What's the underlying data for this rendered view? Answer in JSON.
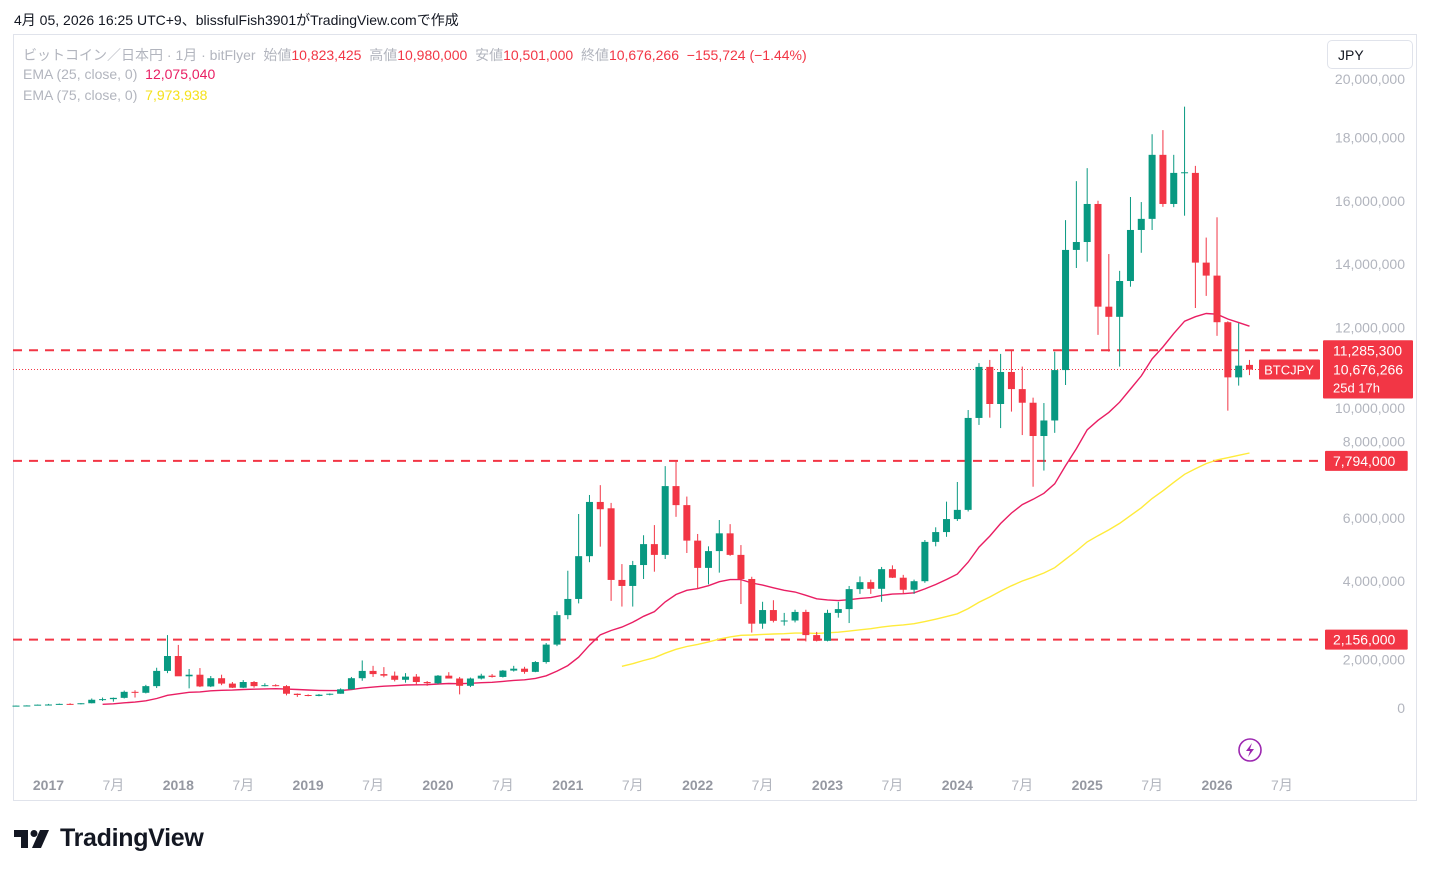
{
  "caption": "4月 05, 2026 16:25 UTC+9、blissfulFish3901がTradingView.comで作成",
  "legend": {
    "symbol": "ビットコイン／日本円 · 1月 · bitFlyer",
    "open_label": "始値",
    "open": "10,823,425",
    "high_label": "高値",
    "high": "10,980,000",
    "low_label": "安値",
    "low": "10,501,000",
    "close_label": "終値",
    "close": "10,676,266",
    "change": "−155,724 (−1.44%)",
    "ema25_label": "EMA (25, close, 0)",
    "ema25_value": "12,075,040",
    "ema75_label": "EMA (75, close, 0)",
    "ema75_value": "7,973,938"
  },
  "currency_button": "JPY",
  "price_labels": {
    "symbol_tag": "BTCJPY",
    "last_price": "10,676,266",
    "countdown": "25d 17h",
    "levels": [
      {
        "value": 11285300,
        "label": "11,285,300"
      },
      {
        "value": 7794000,
        "label": "7,794,000"
      },
      {
        "value": 2156000,
        "label": "2,156,000"
      }
    ]
  },
  "logo_text": "TradingView",
  "colors": {
    "up": "#089981",
    "down": "#f23645",
    "ema25": "#e91e63",
    "ema75": "#ffeb3b",
    "level": "#f23645",
    "alert": "#9c27b0"
  },
  "chart_data": {
    "type": "candlestick",
    "title": "ビットコイン／日本円 · 1月 · bitFlyer",
    "interval": "1M",
    "start": "2016-10",
    "unit": "million JPY",
    "fields": [
      "open",
      "high",
      "low",
      "close"
    ],
    "ohlc": [
      [
        0.065,
        0.08,
        0.06,
        0.075
      ],
      [
        0.075,
        0.085,
        0.07,
        0.08
      ],
      [
        0.08,
        0.11,
        0.078,
        0.105
      ],
      [
        0.105,
        0.13,
        0.09,
        0.11
      ],
      [
        0.11,
        0.14,
        0.105,
        0.13
      ],
      [
        0.13,
        0.15,
        0.1,
        0.12
      ],
      [
        0.12,
        0.155,
        0.115,
        0.15
      ],
      [
        0.15,
        0.3,
        0.145,
        0.26
      ],
      [
        0.26,
        0.33,
        0.22,
        0.28
      ],
      [
        0.28,
        0.33,
        0.2,
        0.32
      ],
      [
        0.32,
        0.55,
        0.3,
        0.51
      ],
      [
        0.51,
        0.56,
        0.33,
        0.48
      ],
      [
        0.48,
        0.73,
        0.46,
        0.69
      ],
      [
        0.69,
        1.27,
        0.63,
        1.17
      ],
      [
        1.17,
        2.3,
        1.1,
        1.64
      ],
      [
        1.64,
        1.99,
        1.05,
        1.0
      ],
      [
        1.0,
        1.23,
        0.62,
        1.05
      ],
      [
        1.05,
        1.26,
        0.66,
        0.68
      ],
      [
        0.68,
        1.01,
        0.66,
        0.94
      ],
      [
        0.94,
        1.05,
        0.72,
        0.77
      ],
      [
        0.77,
        0.82,
        0.63,
        0.64
      ],
      [
        0.64,
        0.88,
        0.63,
        0.82
      ],
      [
        0.82,
        0.85,
        0.64,
        0.69
      ],
      [
        0.69,
        0.78,
        0.68,
        0.72
      ],
      [
        0.72,
        0.75,
        0.68,
        0.69
      ],
      [
        0.69,
        0.72,
        0.4,
        0.45
      ],
      [
        0.45,
        0.46,
        0.35,
        0.41
      ],
      [
        0.41,
        0.43,
        0.37,
        0.38
      ],
      [
        0.38,
        0.44,
        0.37,
        0.42
      ],
      [
        0.42,
        0.46,
        0.4,
        0.45
      ],
      [
        0.45,
        0.62,
        0.45,
        0.59
      ],
      [
        0.59,
        0.98,
        0.58,
        0.94
      ],
      [
        0.94,
        1.5,
        0.86,
        1.17
      ],
      [
        1.17,
        1.33,
        0.98,
        1.07
      ],
      [
        1.07,
        1.29,
        0.97,
        1.02
      ],
      [
        1.02,
        1.15,
        0.84,
        0.89
      ],
      [
        0.89,
        1.1,
        0.8,
        0.99
      ],
      [
        0.99,
        1.07,
        0.73,
        0.82
      ],
      [
        0.82,
        0.85,
        0.7,
        0.78
      ],
      [
        0.78,
        1.04,
        0.75,
        1.02
      ],
      [
        1.02,
        1.13,
        0.93,
        0.93
      ],
      [
        0.93,
        0.98,
        0.43,
        0.7
      ],
      [
        0.7,
        0.96,
        0.66,
        0.93
      ],
      [
        0.93,
        1.08,
        0.9,
        1.02
      ],
      [
        1.02,
        1.07,
        0.96,
        0.98
      ],
      [
        0.98,
        1.2,
        0.96,
        1.18
      ],
      [
        1.18,
        1.33,
        1.15,
        1.24
      ],
      [
        1.24,
        1.3,
        1.08,
        1.14
      ],
      [
        1.14,
        1.48,
        1.13,
        1.45
      ],
      [
        1.45,
        2.05,
        1.4,
        2.0
      ],
      [
        2.0,
        3.05,
        1.95,
        2.93
      ],
      [
        2.93,
        4.33,
        2.8,
        3.44
      ],
      [
        3.44,
        6.12,
        3.3,
        4.79
      ],
      [
        4.79,
        6.72,
        4.6,
        6.5
      ],
      [
        6.5,
        7.03,
        5.09,
        6.27
      ],
      [
        6.3,
        6.47,
        3.38,
        4.04
      ],
      [
        4.04,
        4.54,
        3.2,
        3.85
      ],
      [
        3.85,
        4.64,
        3.2,
        4.51
      ],
      [
        4.51,
        5.45,
        4.07,
        5.17
      ],
      [
        5.17,
        5.77,
        4.3,
        4.83
      ],
      [
        4.83,
        7.63,
        4.7,
        7.0
      ],
      [
        7.0,
        7.77,
        6.03,
        6.4
      ],
      [
        6.4,
        6.67,
        4.89,
        5.28
      ],
      [
        5.28,
        5.49,
        3.75,
        4.42
      ],
      [
        4.42,
        5.1,
        3.9,
        4.95
      ],
      [
        4.95,
        5.93,
        4.27,
        5.51
      ],
      [
        5.51,
        5.8,
        4.8,
        4.83
      ],
      [
        4.83,
        5.14,
        3.28,
        4.07
      ],
      [
        4.07,
        4.14,
        2.38,
        2.66
      ],
      [
        2.66,
        3.35,
        2.5,
        3.09
      ],
      [
        3.09,
        3.4,
        2.7,
        2.75
      ],
      [
        2.75,
        3.0,
        2.6,
        2.76
      ],
      [
        2.76,
        3.1,
        2.7,
        3.03
      ],
      [
        3.03,
        3.1,
        2.1,
        2.3
      ],
      [
        2.3,
        2.4,
        2.1,
        2.12
      ],
      [
        2.12,
        3.1,
        2.1,
        3.0
      ],
      [
        3.0,
        3.35,
        2.85,
        3.12
      ],
      [
        3.12,
        3.85,
        2.68,
        3.75
      ],
      [
        3.75,
        4.15,
        3.6,
        3.97
      ],
      [
        3.97,
        4.05,
        3.6,
        3.76
      ],
      [
        3.76,
        4.45,
        3.35,
        4.38
      ],
      [
        4.38,
        4.5,
        4.1,
        4.11
      ],
      [
        4.11,
        4.2,
        3.6,
        3.73
      ],
      [
        3.73,
        4.05,
        3.6,
        4.0
      ],
      [
        4.0,
        5.3,
        3.95,
        5.24
      ],
      [
        5.24,
        5.7,
        5.1,
        5.55
      ],
      [
        5.55,
        6.51,
        5.4,
        5.96
      ],
      [
        5.96,
        7.13,
        5.9,
        6.25
      ],
      [
        6.25,
        9.4,
        6.2,
        9.15
      ],
      [
        9.15,
        10.88,
        8.93,
        10.76
      ],
      [
        10.76,
        10.98,
        9.16,
        9.59
      ],
      [
        9.59,
        11.17,
        8.83,
        10.6
      ],
      [
        10.6,
        11.27,
        9.35,
        10.06
      ],
      [
        10.06,
        10.77,
        8.61,
        9.63
      ],
      [
        9.63,
        9.79,
        6.98,
        8.58
      ],
      [
        8.58,
        9.62,
        7.49,
        9.07
      ],
      [
        9.07,
        11.24,
        8.68,
        10.66
      ],
      [
        10.66,
        15.39,
        10.19,
        14.45
      ],
      [
        14.45,
        16.62,
        13.88,
        14.7
      ],
      [
        14.7,
        17.03,
        14.08,
        15.9
      ],
      [
        15.9,
        16.0,
        11.77,
        12.66
      ],
      [
        12.66,
        14.32,
        11.24,
        12.34
      ],
      [
        12.34,
        13.79,
        10.77,
        13.47
      ],
      [
        13.47,
        16.12,
        13.29,
        15.08
      ],
      [
        15.08,
        15.96,
        14.36,
        15.43
      ],
      [
        15.43,
        18.1,
        15.08,
        17.45
      ],
      [
        17.45,
        18.23,
        15.81,
        15.9
      ],
      [
        15.9,
        17.45,
        15.8,
        16.88
      ],
      [
        16.88,
        18.97,
        15.53,
        16.9
      ],
      [
        16.88,
        17.1,
        12.62,
        14.05
      ],
      [
        14.05,
        14.84,
        13.0,
        13.64
      ],
      [
        13.64,
        15.48,
        11.74,
        12.17
      ],
      [
        12.17,
        12.2,
        9.38,
        10.43
      ],
      [
        10.43,
        12.14,
        10.17,
        10.8
      ],
      [
        10.823425,
        10.98,
        10.501,
        10.676266
      ]
    ],
    "indicators": [
      {
        "name": "EMA (25, close, 0)",
        "period": 25,
        "last": 12075040
      },
      {
        "name": "EMA (75, close, 0)",
        "period": 75,
        "last": 7973938
      }
    ],
    "y_axis": {
      "range": [
        -1000000,
        21000000
      ],
      "ticks": [
        {
          "value": 0,
          "label": "0"
        },
        {
          "value": 2000000,
          "label": "2,000,000"
        },
        {
          "value": 4000000,
          "label": "4,000,000"
        },
        {
          "value": 6000000,
          "label": "6,000,000"
        },
        {
          "value": 8000000,
          "label": "8,000,000"
        },
        {
          "value": 10000000,
          "label": "10,000,000"
        },
        {
          "value": 12000000,
          "label": "12,000,000"
        },
        {
          "value": 14000000,
          "label": "14,000,000"
        },
        {
          "value": 16000000,
          "label": "16,000,000"
        },
        {
          "value": 18000000,
          "label": "18,000,000"
        },
        {
          "value": 20000000,
          "label": "20,000,000"
        }
      ]
    },
    "x_axis": {
      "ticks": [
        {
          "date": "2017-01",
          "label": "2017",
          "major": true
        },
        {
          "date": "2017-07",
          "label": "7月"
        },
        {
          "date": "2018-01",
          "label": "2018",
          "major": true
        },
        {
          "date": "2018-07",
          "label": "7月"
        },
        {
          "date": "2019-01",
          "label": "2019",
          "major": true
        },
        {
          "date": "2019-07",
          "label": "7月"
        },
        {
          "date": "2020-01",
          "label": "2020",
          "major": true
        },
        {
          "date": "2020-07",
          "label": "7月"
        },
        {
          "date": "2021-01",
          "label": "2021",
          "major": true
        },
        {
          "date": "2021-07",
          "label": "7月"
        },
        {
          "date": "2022-01",
          "label": "2022",
          "major": true
        },
        {
          "date": "2022-07",
          "label": "7月"
        },
        {
          "date": "2023-01",
          "label": "2023",
          "major": true
        },
        {
          "date": "2023-07",
          "label": "7月"
        },
        {
          "date": "2024-01",
          "label": "2024",
          "major": true
        },
        {
          "date": "2024-07",
          "label": "7月"
        },
        {
          "date": "2025-01",
          "label": "2025",
          "major": true
        },
        {
          "date": "2025-07",
          "label": "7月"
        },
        {
          "date": "2026-01",
          "label": "2026",
          "major": true
        },
        {
          "date": "2026-07",
          "label": "7月"
        }
      ]
    }
  }
}
